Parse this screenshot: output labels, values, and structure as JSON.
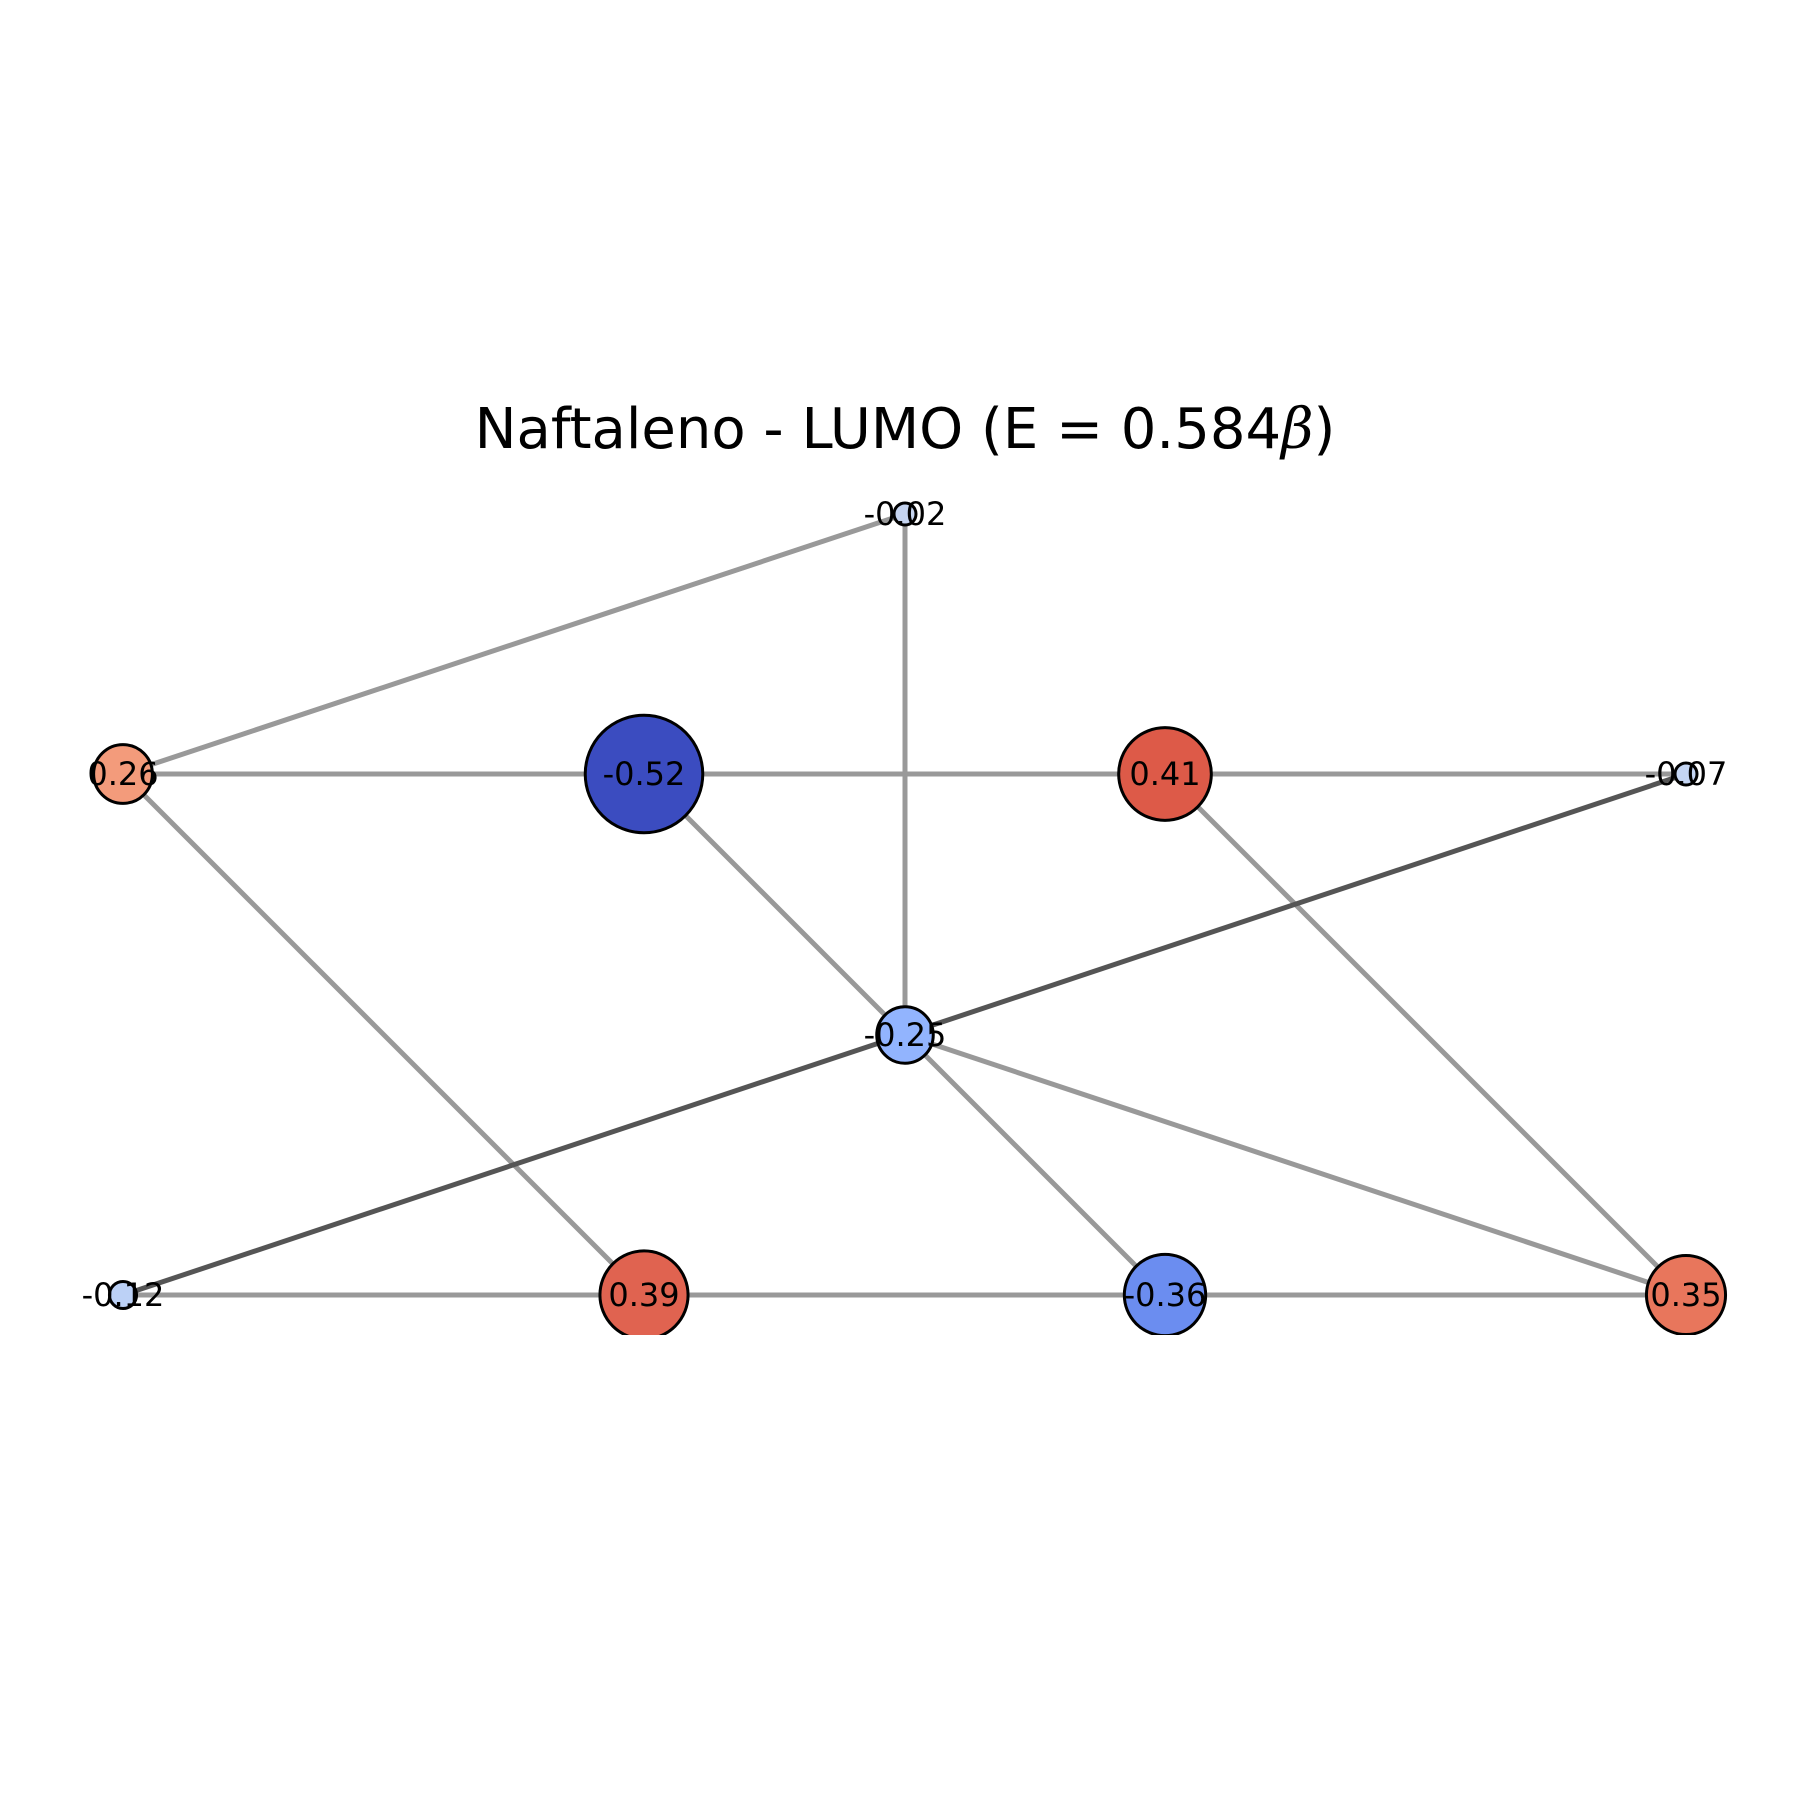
{
  "title": {
    "prefix": "Naftaleno - LUMO (E = 0.584",
    "symbol": "β",
    "suffix": ")"
  },
  "graph": {
    "nodes": [
      {
        "id": "a",
        "label": "-0.02",
        "coefficient": -0.02,
        "color": "#c5d4f0"
      },
      {
        "id": "b",
        "label": "0.26",
        "coefficient": 0.26,
        "color": "#f39b7b"
      },
      {
        "id": "c",
        "label": "-0.52",
        "coefficient": -0.52,
        "color": "#3b4cc0"
      },
      {
        "id": "d",
        "label": "0.41",
        "coefficient": 0.41,
        "color": "#dd5a48"
      },
      {
        "id": "e",
        "label": "-0.07",
        "coefficient": -0.07,
        "color": "#c4d5f3"
      },
      {
        "id": "f",
        "label": "-0.25",
        "coefficient": -0.25,
        "color": "#92b4fe"
      },
      {
        "id": "g",
        "label": "-0.12",
        "coefficient": -0.12,
        "color": "#bcd1f6"
      },
      {
        "id": "h",
        "label": "0.39",
        "coefficient": 0.39,
        "color": "#e06350"
      },
      {
        "id": "i",
        "label": "-0.36",
        "coefficient": -0.36,
        "color": "#6b8df0"
      },
      {
        "id": "j",
        "label": "0.35",
        "coefficient": 0.35,
        "color": "#e8765c"
      }
    ],
    "edges": [
      {
        "from": "a",
        "to": "b",
        "emphasis": "light"
      },
      {
        "from": "a",
        "to": "f",
        "emphasis": "light"
      },
      {
        "from": "b",
        "to": "c",
        "emphasis": "light"
      },
      {
        "from": "c",
        "to": "d",
        "emphasis": "light"
      },
      {
        "from": "d",
        "to": "e",
        "emphasis": "light"
      },
      {
        "from": "b",
        "to": "h",
        "emphasis": "light"
      },
      {
        "from": "c",
        "to": "f",
        "emphasis": "light"
      },
      {
        "from": "d",
        "to": "j",
        "emphasis": "light"
      },
      {
        "from": "e",
        "to": "g",
        "emphasis": "dark"
      },
      {
        "from": "f",
        "to": "i",
        "emphasis": "light"
      },
      {
        "from": "f",
        "to": "j",
        "emphasis": "light"
      },
      {
        "from": "g",
        "to": "h",
        "emphasis": "light"
      },
      {
        "from": "h",
        "to": "i",
        "emphasis": "light"
      },
      {
        "from": "i",
        "to": "j",
        "emphasis": "light"
      }
    ],
    "edge_colors": {
      "light": "#999999",
      "dark": "#555555"
    }
  }
}
